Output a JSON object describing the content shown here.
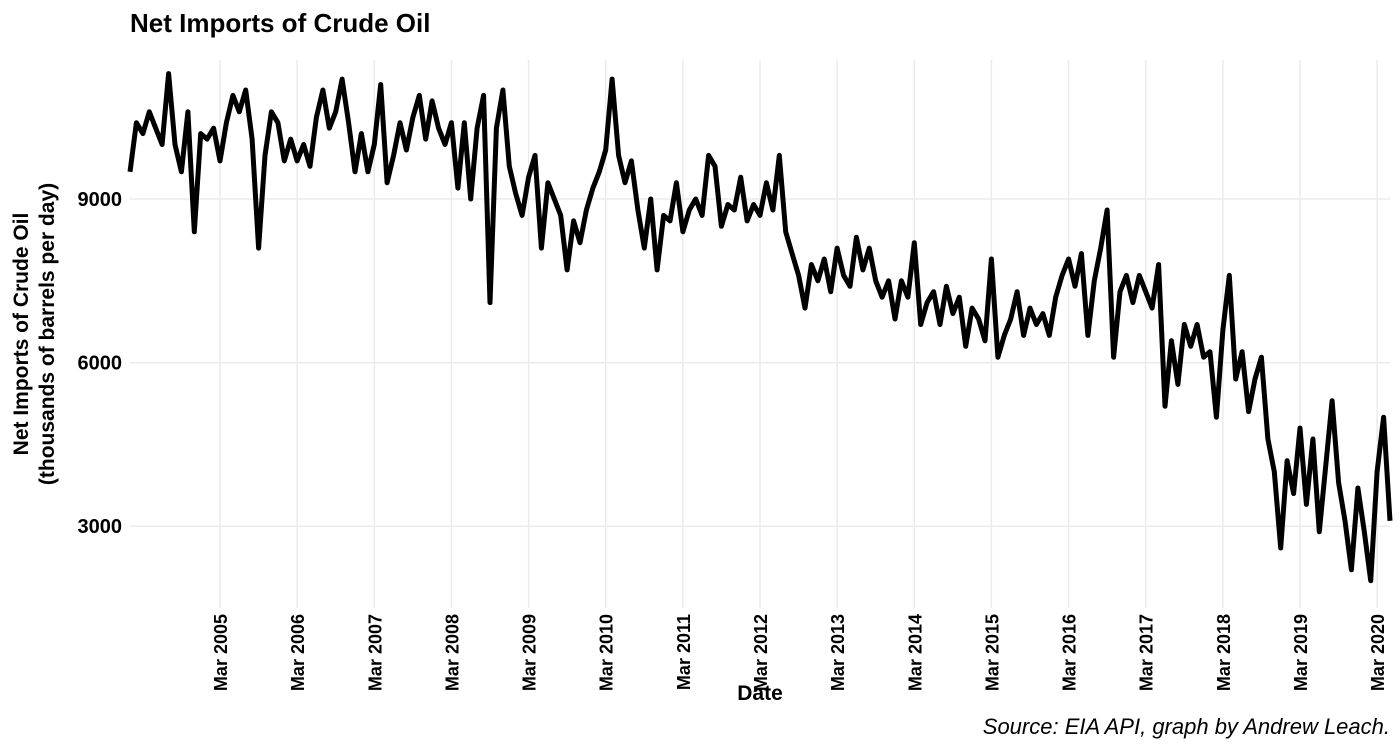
{
  "chart_data": {
    "type": "line",
    "title": "Net Imports of Crude Oil",
    "x_label": "Date",
    "y_label": [
      "Net Imports of Crude Oil",
      "(thousands of barrels per day)"
    ],
    "caption": "Source: EIA API, graph by Andrew Leach.",
    "grid": true,
    "xlim": [
      "2004-01",
      "2020-05"
    ],
    "xticks": [
      {
        "value": "2005-03",
        "label": "Mar 2005"
      },
      {
        "value": "2006-03",
        "label": "Mar 2006"
      },
      {
        "value": "2007-03",
        "label": "Mar 2007"
      },
      {
        "value": "2008-03",
        "label": "Mar 2008"
      },
      {
        "value": "2009-03",
        "label": "Mar 2009"
      },
      {
        "value": "2010-03",
        "label": "Mar 2010"
      },
      {
        "value": "2011-03",
        "label": "Mar 2011"
      },
      {
        "value": "2012-03",
        "label": "Mar 2012"
      },
      {
        "value": "2013-03",
        "label": "Mar 2013"
      },
      {
        "value": "2014-03",
        "label": "Mar 2014"
      },
      {
        "value": "2015-03",
        "label": "Mar 2015"
      },
      {
        "value": "2016-03",
        "label": "Mar 2016"
      },
      {
        "value": "2017-03",
        "label": "Mar 2017"
      },
      {
        "value": "2018-03",
        "label": "Mar 2018"
      },
      {
        "value": "2019-03",
        "label": "Mar 2019"
      },
      {
        "value": "2020-03",
        "label": "Mar 2020"
      }
    ],
    "ylim": [
      1500,
      11550
    ],
    "yticks": [
      3000,
      6000,
      9000
    ],
    "x": [
      "2004-01",
      "2004-02",
      "2004-03",
      "2004-04",
      "2004-05",
      "2004-06",
      "2004-07",
      "2004-08",
      "2004-09",
      "2004-10",
      "2004-11",
      "2004-12",
      "2005-01",
      "2005-02",
      "2005-03",
      "2005-04",
      "2005-05",
      "2005-06",
      "2005-07",
      "2005-08",
      "2005-09",
      "2005-10",
      "2005-11",
      "2005-12",
      "2006-01",
      "2006-02",
      "2006-03",
      "2006-04",
      "2006-05",
      "2006-06",
      "2006-07",
      "2006-08",
      "2006-09",
      "2006-10",
      "2006-11",
      "2006-12",
      "2007-01",
      "2007-02",
      "2007-03",
      "2007-04",
      "2007-05",
      "2007-06",
      "2007-07",
      "2007-08",
      "2007-09",
      "2007-10",
      "2007-11",
      "2007-12",
      "2008-01",
      "2008-02",
      "2008-03",
      "2008-04",
      "2008-05",
      "2008-06",
      "2008-07",
      "2008-08",
      "2008-09",
      "2008-10",
      "2008-11",
      "2008-12",
      "2009-01",
      "2009-02",
      "2009-03",
      "2009-04",
      "2009-05",
      "2009-06",
      "2009-07",
      "2009-08",
      "2009-09",
      "2009-10",
      "2009-11",
      "2009-12",
      "2010-01",
      "2010-02",
      "2010-03",
      "2010-04",
      "2010-05",
      "2010-06",
      "2010-07",
      "2010-08",
      "2010-09",
      "2010-10",
      "2010-11",
      "2010-12",
      "2011-01",
      "2011-02",
      "2011-03",
      "2011-04",
      "2011-05",
      "2011-06",
      "2011-07",
      "2011-08",
      "2011-09",
      "2011-10",
      "2011-11",
      "2011-12",
      "2012-01",
      "2012-02",
      "2012-03",
      "2012-04",
      "2012-05",
      "2012-06",
      "2012-07",
      "2012-08",
      "2012-09",
      "2012-10",
      "2012-11",
      "2012-12",
      "2013-01",
      "2013-02",
      "2013-03",
      "2013-04",
      "2013-05",
      "2013-06",
      "2013-07",
      "2013-08",
      "2013-09",
      "2013-10",
      "2013-11",
      "2013-12",
      "2014-01",
      "2014-02",
      "2014-03",
      "2014-04",
      "2014-05",
      "2014-06",
      "2014-07",
      "2014-08",
      "2014-09",
      "2014-10",
      "2014-11",
      "2014-12",
      "2015-01",
      "2015-02",
      "2015-03",
      "2015-04",
      "2015-05",
      "2015-06",
      "2015-07",
      "2015-08",
      "2015-09",
      "2015-10",
      "2015-11",
      "2015-12",
      "2016-01",
      "2016-02",
      "2016-03",
      "2016-04",
      "2016-05",
      "2016-06",
      "2016-07",
      "2016-08",
      "2016-09",
      "2016-10",
      "2016-11",
      "2016-12",
      "2017-01",
      "2017-02",
      "2017-03",
      "2017-04",
      "2017-05",
      "2017-06",
      "2017-07",
      "2017-08",
      "2017-09",
      "2017-10",
      "2017-11",
      "2017-12",
      "2018-01",
      "2018-02",
      "2018-03",
      "2018-04",
      "2018-05",
      "2018-06",
      "2018-07",
      "2018-08",
      "2018-09",
      "2018-10",
      "2018-11",
      "2018-12",
      "2019-01",
      "2019-02",
      "2019-03",
      "2019-04",
      "2019-05",
      "2019-06",
      "2019-07",
      "2019-08",
      "2019-09",
      "2019-10",
      "2019-11",
      "2019-12",
      "2020-01",
      "2020-02",
      "2020-03",
      "2020-04",
      "2020-05"
    ],
    "series": [
      {
        "name": "Net Imports of Crude Oil",
        "color": "#000000",
        "values": [
          9500,
          10400,
          10200,
          10600,
          10300,
          10000,
          11300,
          10000,
          9500,
          10600,
          8400,
          10200,
          10100,
          10300,
          9700,
          10400,
          10900,
          10600,
          11000,
          10100,
          8100,
          9800,
          10600,
          10400,
          9700,
          10100,
          9700,
          10000,
          9600,
          10500,
          11000,
          10300,
          10600,
          11200,
          10400,
          9500,
          10200,
          9500,
          10000,
          11100,
          9300,
          9800,
          10400,
          9900,
          10500,
          10900,
          10100,
          10800,
          10300,
          10000,
          10400,
          9200,
          10400,
          9000,
          10300,
          10900,
          7100,
          10300,
          11000,
          9600,
          9100,
          8700,
          9400,
          9800,
          8100,
          9300,
          9000,
          8700,
          7700,
          8600,
          8200,
          8800,
          9200,
          9500,
          9900,
          11200,
          9800,
          9300,
          9700,
          8800,
          8100,
          9000,
          7700,
          8700,
          8600,
          9300,
          8400,
          8800,
          9000,
          8700,
          9800,
          9600,
          8500,
          8900,
          8800,
          9400,
          8600,
          8900,
          8700,
          9300,
          8800,
          9800,
          8400,
          8000,
          7600,
          7000,
          7800,
          7500,
          7900,
          7300,
          8100,
          7600,
          7400,
          8300,
          7700,
          8100,
          7500,
          7200,
          7500,
          6800,
          7500,
          7200,
          8200,
          6700,
          7100,
          7300,
          6700,
          7400,
          6900,
          7200,
          6300,
          7000,
          6800,
          6400,
          7900,
          6100,
          6500,
          6800,
          7300,
          6500,
          7000,
          6700,
          6900,
          6500,
          7200,
          7600,
          7900,
          7400,
          8000,
          6500,
          7500,
          8100,
          8800,
          6100,
          7300,
          7600,
          7100,
          7600,
          7300,
          7000,
          7800,
          5200,
          6400,
          5600,
          6700,
          6300,
          6700,
          6100,
          6200,
          5000,
          6600,
          7600,
          5700,
          6200,
          5100,
          5700,
          6100,
          4600,
          4000,
          2600,
          4200,
          3600,
          4800,
          3400,
          4600,
          2900,
          4100,
          5300,
          3800,
          3100,
          2200,
          3700,
          2900,
          2000,
          4000,
          5000,
          3100
        ]
      }
    ]
  }
}
